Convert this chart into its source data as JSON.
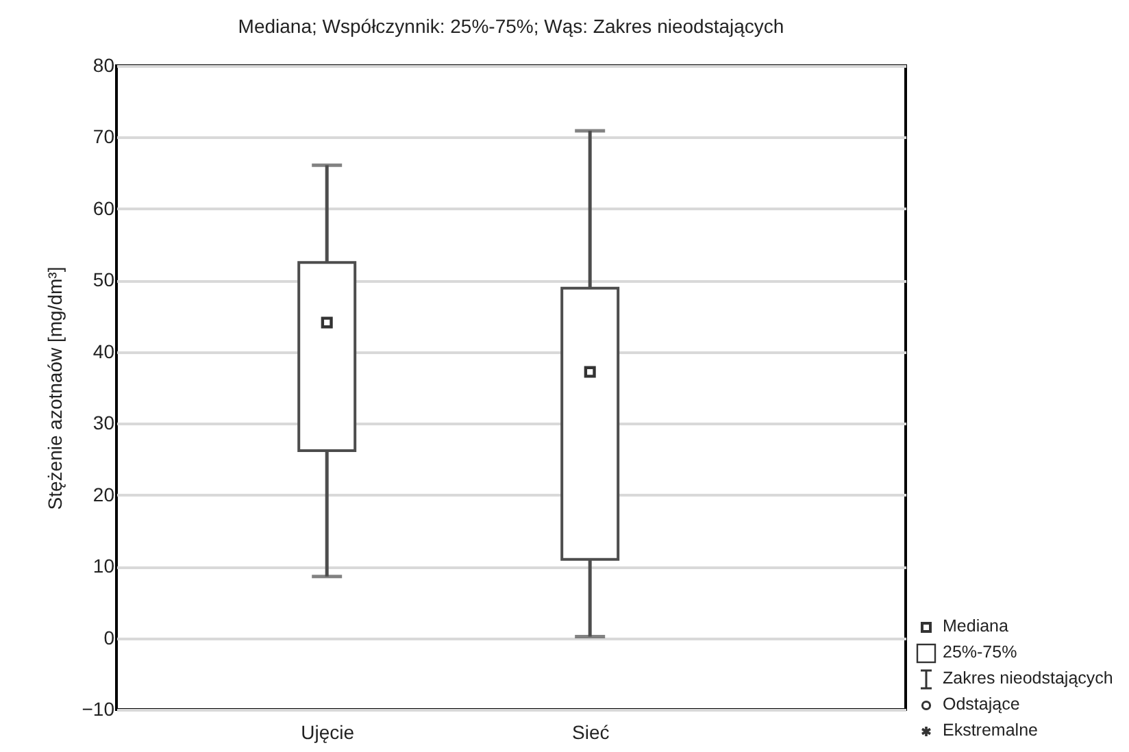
{
  "chart_data": {
    "type": "box",
    "title": "Mediana; Współczynnik: 25%-75%; Wąs: Zakres nieodstających",
    "ylabel": "Stężenie azotnaów [mg/dm³]",
    "categories": [
      "Ujęcie",
      "Sieć"
    ],
    "boxes": [
      {
        "low": 8.6,
        "q1": 26.2,
        "median": 44.1,
        "q3": 52.5,
        "high": 66.1
      },
      {
        "low": 0.2,
        "q1": 11.0,
        "median": 37.2,
        "q3": 48.9,
        "high": 70.9
      }
    ],
    "ylim": [
      -10,
      80
    ],
    "yticks": [
      -10,
      0,
      10,
      20,
      30,
      40,
      50,
      60,
      70,
      80
    ],
    "grid": "y",
    "annotations": [
      "Mediana",
      "25%-75%",
      "Zakres nieodstających",
      "Odstające",
      "Ekstremalne"
    ]
  }
}
